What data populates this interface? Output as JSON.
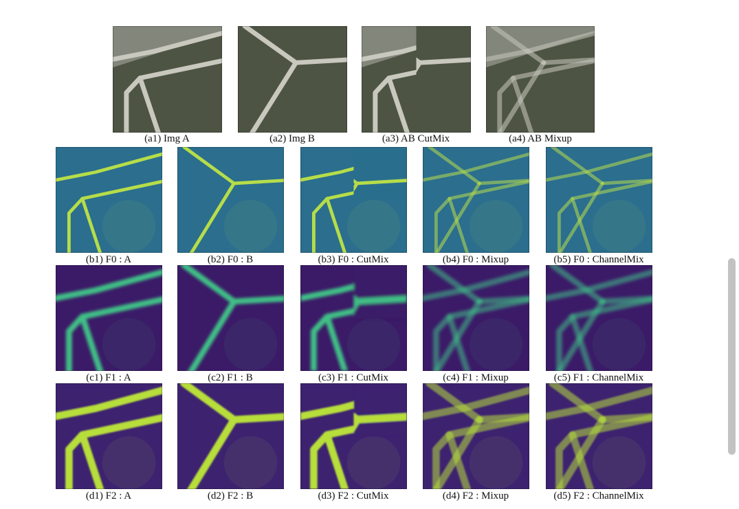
{
  "figure": {
    "rows": [
      {
        "id": "a",
        "panels": [
          {
            "caption": "(a1) Img A",
            "kind": "photo",
            "content": "A"
          },
          {
            "caption": "(a2) Img B",
            "kind": "photo",
            "content": "B"
          },
          {
            "caption": "(a3) AB CutMix",
            "kind": "photo",
            "content": "CutMix"
          },
          {
            "caption": "(a4) AB Mixup",
            "kind": "photo",
            "content": "Mixup"
          }
        ]
      },
      {
        "id": "b",
        "panels": [
          {
            "caption": "(b1) F0 : A",
            "kind": "feature",
            "level": 0,
            "content": "A"
          },
          {
            "caption": "(b2) F0 : B",
            "kind": "feature",
            "level": 0,
            "content": "B"
          },
          {
            "caption": "(b3) F0 : CutMix",
            "kind": "feature",
            "level": 0,
            "content": "CutMix"
          },
          {
            "caption": "(b4) F0 : Mixup",
            "kind": "feature",
            "level": 0,
            "content": "Mixup"
          },
          {
            "caption": "(b5) F0 : ChannelMix",
            "kind": "feature",
            "level": 0,
            "content": "ChannelMix"
          }
        ]
      },
      {
        "id": "c",
        "panels": [
          {
            "caption": "(c1) F1 : A",
            "kind": "feature",
            "level": 1,
            "content": "A"
          },
          {
            "caption": "(c2) F1 : B",
            "kind": "feature",
            "level": 1,
            "content": "B"
          },
          {
            "caption": "(c3) F1 : CutMix",
            "kind": "feature",
            "level": 1,
            "content": "CutMix"
          },
          {
            "caption": "(c4) F1 : Mixup",
            "kind": "feature",
            "level": 1,
            "content": "Mixup"
          },
          {
            "caption": "(c5) F1 : ChannelMix",
            "kind": "feature",
            "level": 1,
            "content": "ChannelMix"
          }
        ]
      },
      {
        "id": "d",
        "panels": [
          {
            "caption": "(d1) F2 : A",
            "kind": "feature",
            "level": 2,
            "content": "A"
          },
          {
            "caption": "(d2) F2 : B",
            "kind": "feature",
            "level": 2,
            "content": "B"
          },
          {
            "caption": "(d3) F2 : CutMix",
            "kind": "feature",
            "level": 2,
            "content": "CutMix"
          },
          {
            "caption": "(d4) F2 : Mixup",
            "kind": "feature",
            "level": 2,
            "content": "Mixup"
          },
          {
            "caption": "(d5) F2 : ChannelMix",
            "kind": "feature",
            "level": 2,
            "content": "ChannelMix"
          }
        ]
      }
    ]
  },
  "colors": {
    "photo_water": "#4d5443",
    "photo_road": "#c9c8be",
    "photo_dark_road": "#777b70",
    "feature_bg_level0": "#2b6e8e",
    "feature_edge_level0": "#b6dd4a",
    "feature_bg_level1": "#3b1a67",
    "feature_edge_level1": "#3fbf86",
    "feature_bg_level2": "#3d2270",
    "feature_edge_level2": "#b7de3b"
  }
}
